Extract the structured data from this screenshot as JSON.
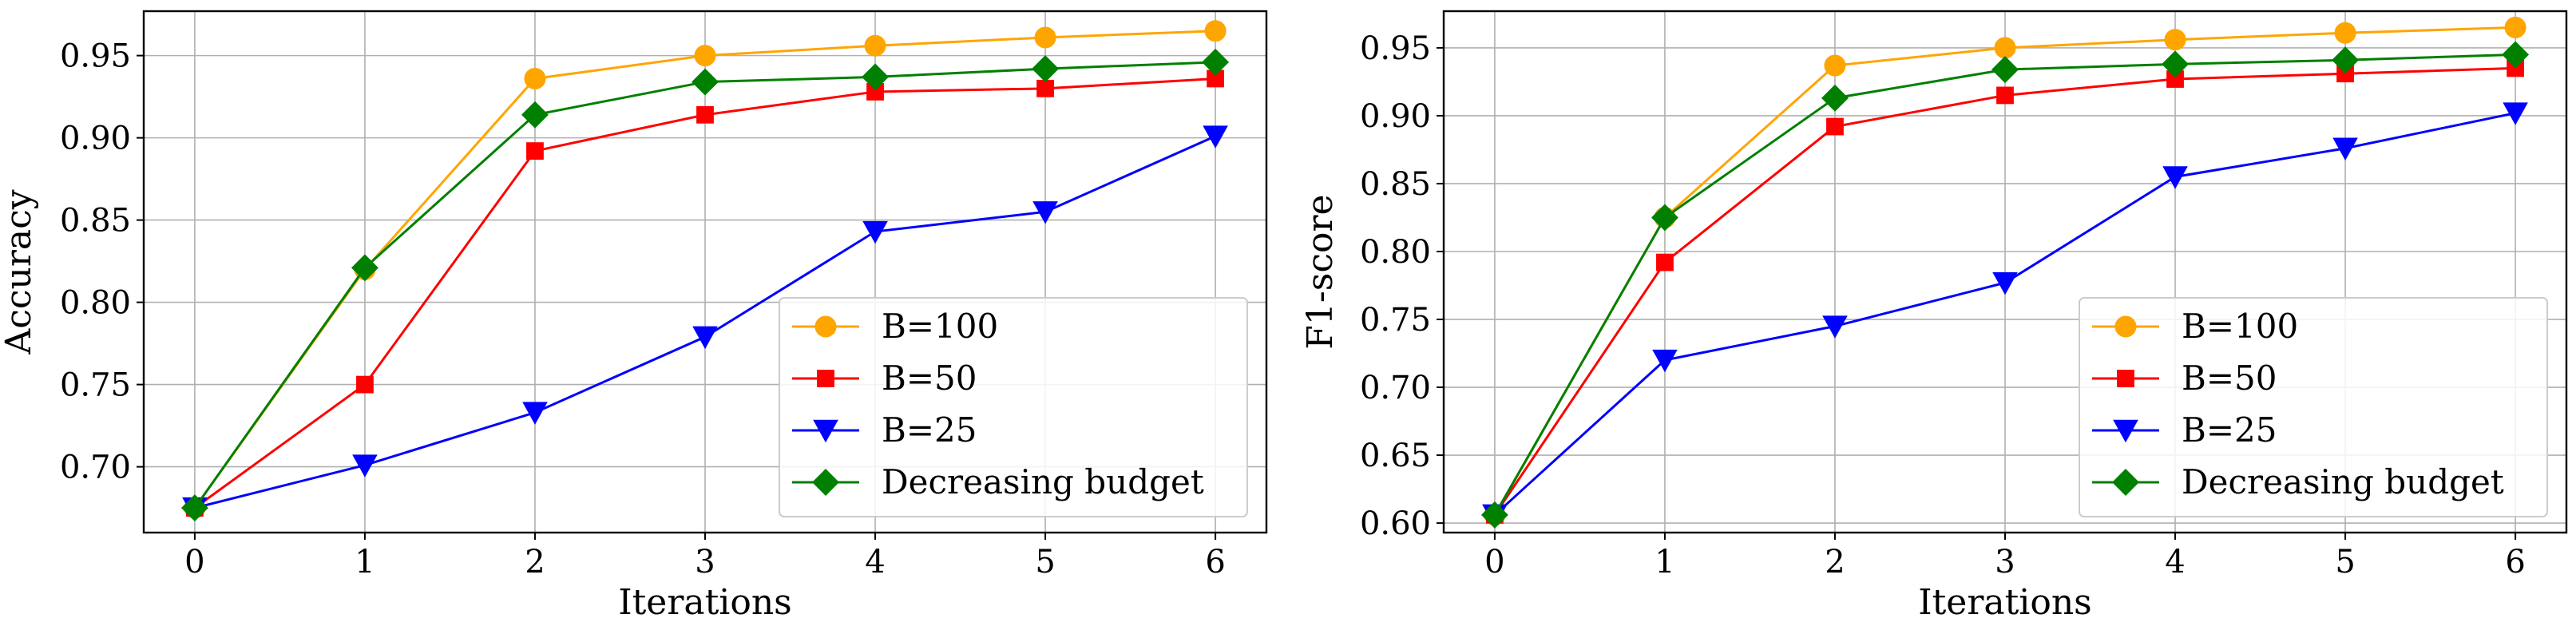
{
  "chart_data": [
    {
      "type": "line",
      "title": "",
      "xlabel": "Iterations",
      "ylabel": "Accuracy",
      "x": [
        0,
        1,
        2,
        3,
        4,
        5,
        6
      ],
      "xlim": [
        -0.3,
        6.3
      ],
      "ylim": [
        0.66,
        0.977
      ],
      "xticks": [
        0,
        1,
        2,
        3,
        4,
        5,
        6
      ],
      "yticks": [
        0.7,
        0.75,
        0.8,
        0.85,
        0.9,
        0.95
      ],
      "grid": true,
      "legend_position": "lower-right",
      "series": [
        {
          "name": "B=100",
          "color": "#ffa500",
          "marker": "circle",
          "values": [
            0.675,
            0.82,
            0.936,
            0.95,
            0.956,
            0.961,
            0.965
          ]
        },
        {
          "name": "B=50",
          "color": "#ff0000",
          "marker": "square",
          "values": [
            0.675,
            0.75,
            0.892,
            0.914,
            0.928,
            0.93,
            0.936
          ]
        },
        {
          "name": "B=25",
          "color": "#0000ff",
          "marker": "triangle-down",
          "values": [
            0.675,
            0.701,
            0.733,
            0.779,
            0.843,
            0.855,
            0.901
          ]
        },
        {
          "name": "Decreasing budget",
          "color": "#008000",
          "marker": "diamond",
          "values": [
            0.675,
            0.821,
            0.914,
            0.934,
            0.937,
            0.942,
            0.946
          ]
        }
      ]
    },
    {
      "type": "line",
      "title": "",
      "xlabel": "Iterations",
      "ylabel": "F1-score",
      "x": [
        0,
        1,
        2,
        3,
        4,
        5,
        6
      ],
      "xlim": [
        -0.3,
        6.3
      ],
      "ylim": [
        0.593,
        0.977
      ],
      "xticks": [
        0,
        1,
        2,
        3,
        4,
        5,
        6
      ],
      "yticks": [
        0.6,
        0.65,
        0.7,
        0.75,
        0.8,
        0.85,
        0.9,
        0.95
      ],
      "grid": true,
      "legend_position": "lower-right",
      "series": [
        {
          "name": "B=100",
          "color": "#ffa500",
          "marker": "circle",
          "values": [
            0.606,
            0.825,
            0.937,
            0.95,
            0.956,
            0.961,
            0.965
          ]
        },
        {
          "name": "B=50",
          "color": "#ff0000",
          "marker": "square",
          "values": [
            0.606,
            0.792,
            0.892,
            0.915,
            0.927,
            0.931,
            0.935
          ]
        },
        {
          "name": "B=25",
          "color": "#0000ff",
          "marker": "triangle-down",
          "values": [
            0.606,
            0.72,
            0.745,
            0.777,
            0.855,
            0.876,
            0.902
          ]
        },
        {
          "name": "Decreasing budget",
          "color": "#008000",
          "marker": "diamond",
          "values": [
            0.606,
            0.825,
            0.913,
            0.934,
            0.938,
            0.941,
            0.945
          ]
        }
      ]
    }
  ]
}
